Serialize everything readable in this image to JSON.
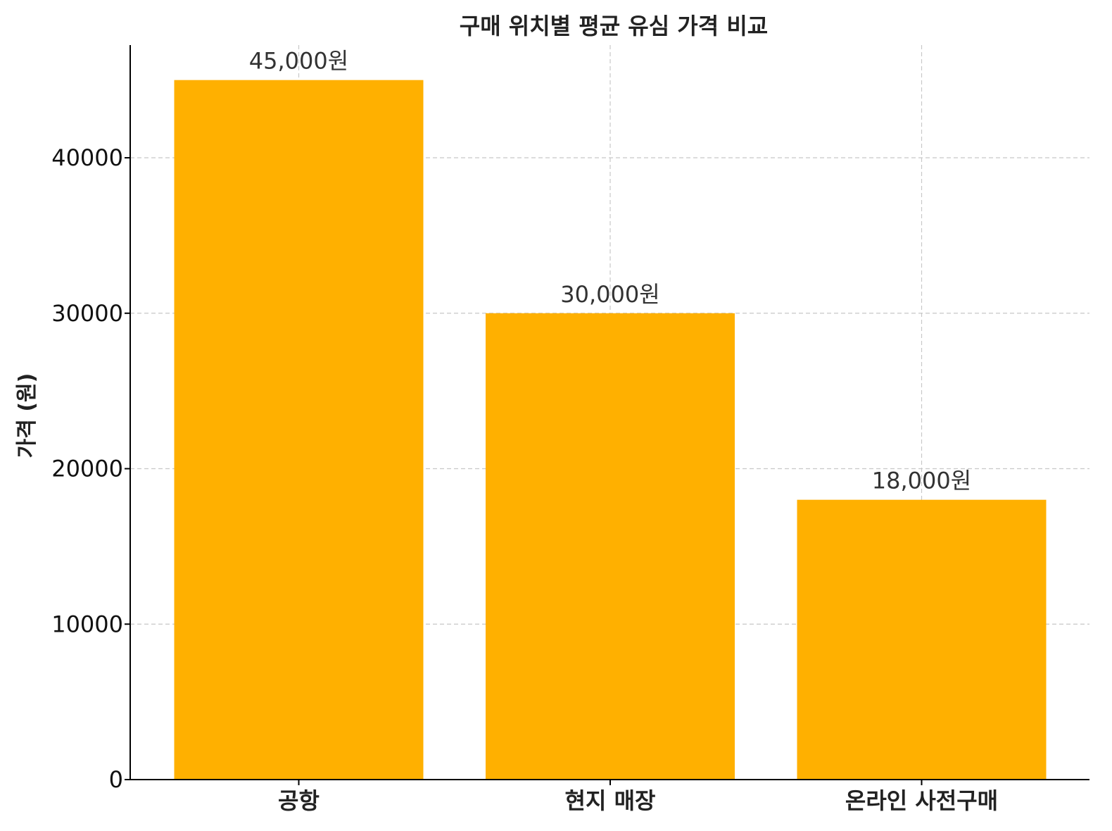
{
  "chart_data": {
    "type": "bar",
    "title": "구매 위치별 평균 유심 가격 비교",
    "xlabel": "",
    "ylabel": "가격 (원)",
    "categories": [
      "공항",
      "현지 매장",
      "온라인 사전구매"
    ],
    "values": [
      45000,
      30000,
      18000
    ],
    "data_labels": [
      "45,000원",
      "30,000원",
      "18,000원"
    ],
    "ylim": [
      0,
      47250
    ],
    "yticks": [
      0,
      10000,
      20000,
      30000,
      40000
    ],
    "ytick_labels": [
      "0",
      "10000",
      "20000",
      "30000",
      "40000"
    ],
    "grid": true,
    "legend": "none",
    "bar_color": "#FFB000",
    "grid_color": "#c8c8c8",
    "axis_color": "#000000"
  }
}
